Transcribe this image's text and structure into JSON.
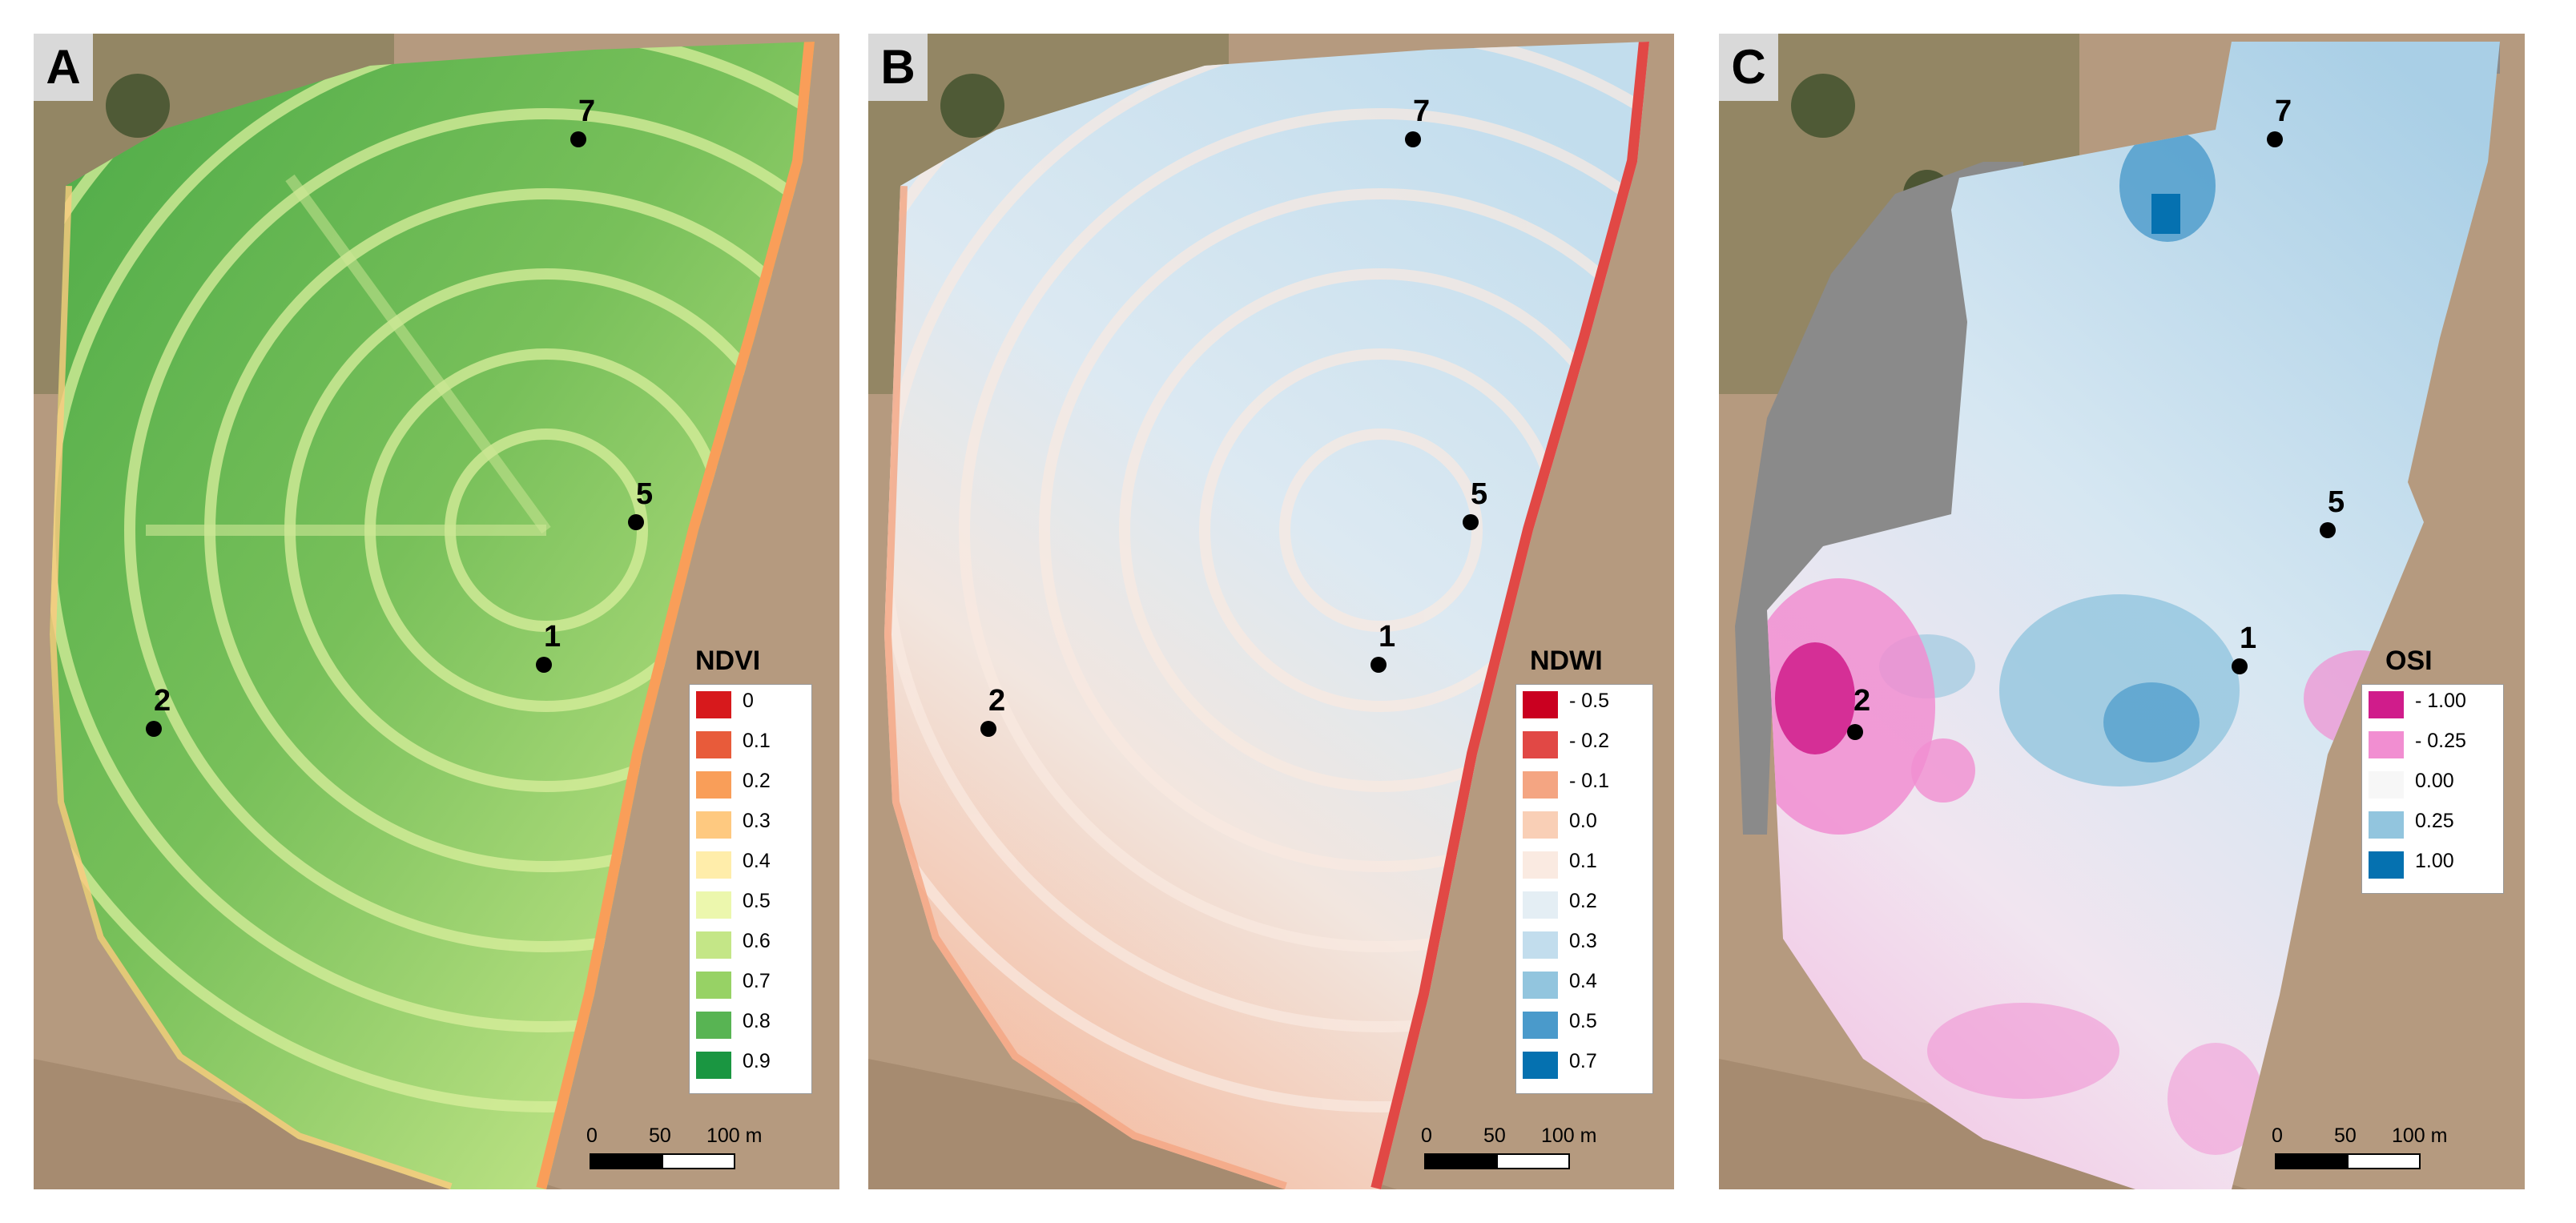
{
  "panels": [
    {
      "letter": "A",
      "legend": {
        "title": "NDVI",
        "items": [
          {
            "label": "0",
            "color": "#d7191c"
          },
          {
            "label": "0.1",
            "color": "#e85b3a"
          },
          {
            "label": "0.2",
            "color": "#f99e59"
          },
          {
            "label": "0.3",
            "color": "#fec980"
          },
          {
            "label": "0.4",
            "color": "#ffedaa"
          },
          {
            "label": "0.5",
            "color": "#ecf7ad"
          },
          {
            "label": "0.6",
            "color": "#c4e687"
          },
          {
            "label": "0.7",
            "color": "#97d265"
          },
          {
            "label": "0.8",
            "color": "#58b453"
          },
          {
            "label": "0.9",
            "color": "#1a9641"
          }
        ]
      },
      "scale": {
        "zero": "0",
        "mid": "50",
        "end": "100 m"
      },
      "points": [
        {
          "label": "7"
        },
        {
          "label": "5"
        },
        {
          "label": "1"
        },
        {
          "label": "2"
        }
      ]
    },
    {
      "letter": "B",
      "legend": {
        "title": "NDWI",
        "items": [
          {
            "label": "- 0.5",
            "color": "#ca0020"
          },
          {
            "label": "- 0.2",
            "color": "#e14845"
          },
          {
            "label": "- 0.1",
            "color": "#f4a582"
          },
          {
            "label": "0.0",
            "color": "#f9cfb6"
          },
          {
            "label": "0.1",
            "color": "#faeae1"
          },
          {
            "label": "0.2",
            "color": "#e4eef4"
          },
          {
            "label": "0.3",
            "color": "#c2dded"
          },
          {
            "label": "0.4",
            "color": "#92c5de"
          },
          {
            "label": "0.5",
            "color": "#4a9acb"
          },
          {
            "label": "0.7",
            "color": "#0571b0"
          }
        ]
      },
      "scale": {
        "zero": "0",
        "mid": "50",
        "end": "100 m"
      },
      "points": [
        {
          "label": "7"
        },
        {
          "label": "5"
        },
        {
          "label": "1"
        },
        {
          "label": "2"
        }
      ]
    },
    {
      "letter": "C",
      "legend": {
        "title": "OSI",
        "items": [
          {
            "label": "- 1.00",
            "color": "#d01c8b"
          },
          {
            "label": "- 0.25",
            "color": "#f18ed1"
          },
          {
            "label": "0.00",
            "color": "#f7f7f7"
          },
          {
            "label": "0.25",
            "color": "#92c5de"
          },
          {
            "label": "1.00",
            "color": "#0571b0"
          }
        ]
      },
      "scale": {
        "zero": "0",
        "mid": "50",
        "end": "100 m"
      },
      "points": [
        {
          "label": "7"
        },
        {
          "label": "5"
        },
        {
          "label": "1"
        },
        {
          "label": "2"
        }
      ]
    }
  ],
  "colors": {
    "background_soil": "#b59a7f",
    "grey_mask": "#8a8a8a"
  }
}
